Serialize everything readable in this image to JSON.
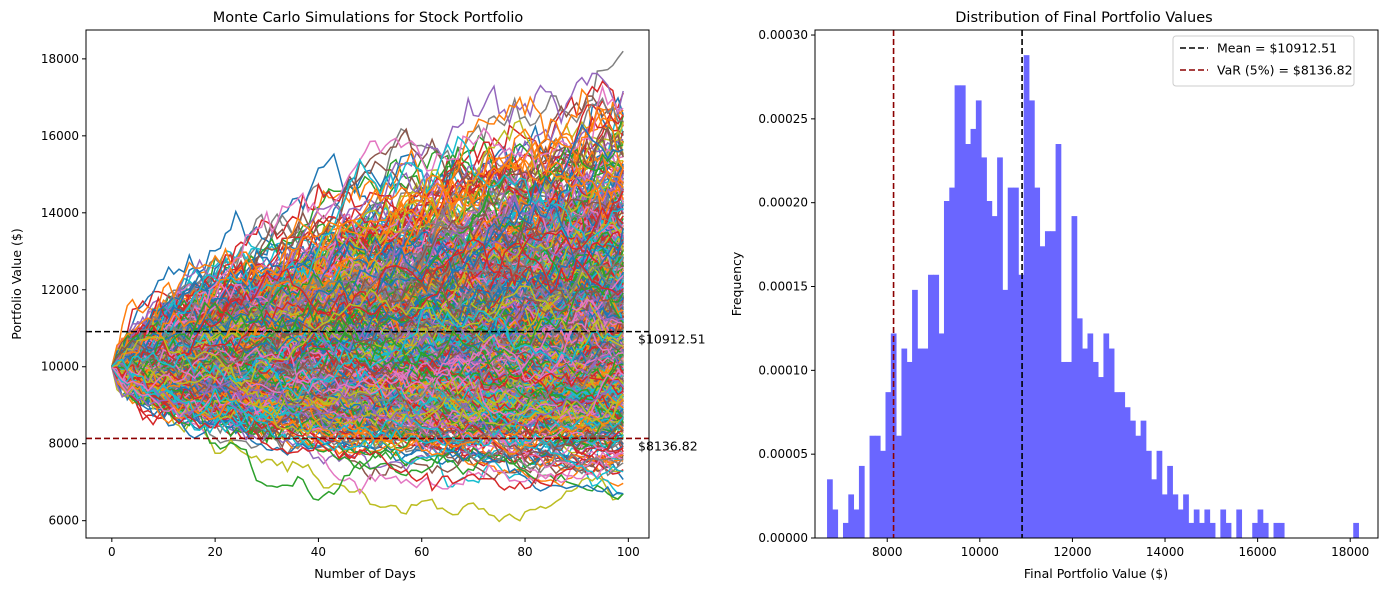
{
  "chart_data": [
    {
      "type": "line",
      "title": "Monte Carlo Simulations for Stock Portfolio",
      "xlabel": "Number of Days",
      "ylabel": "Portfolio Value ($)",
      "xlim": [
        -5,
        104
      ],
      "ylim": [
        5550,
        18750
      ],
      "xticks": [
        0,
        20,
        40,
        60,
        80,
        100
      ],
      "xtick_labels": [
        "0",
        "20",
        "40",
        "60",
        "80",
        "100"
      ],
      "yticks": [
        6000,
        8000,
        10000,
        12000,
        14000,
        16000,
        18000
      ],
      "ytick_labels": [
        "6000",
        "8000",
        "10000",
        "12000",
        "14000",
        "16000",
        "18000"
      ],
      "grid": false,
      "num_simulations": 1000,
      "num_days": 100,
      "initial_value": 10000,
      "final_value_range": [
        6700,
        18200
      ],
      "reference_lines": [
        {
          "name": "mean",
          "y": 10912.51,
          "label": "$10912.51",
          "color": "#000000",
          "style": "dashed"
        },
        {
          "name": "var",
          "y": 8136.82,
          "label": "$8136.82",
          "color": "#8b0000",
          "style": "dashed"
        }
      ],
      "series_colors": [
        "#1f77b4",
        "#ff7f0e",
        "#2ca02c",
        "#d62728",
        "#9467bd",
        "#8c564b",
        "#e377c2",
        "#7f7f7f",
        "#bcbd22",
        "#17becf"
      ]
    },
    {
      "type": "histogram",
      "title": "Distribution of Final Portfolio Values",
      "xlabel": "Final Portfolio Value ($)",
      "ylabel": "Frequency",
      "xlim": [
        6440,
        18600
      ],
      "ylim": [
        0,
        0.000303
      ],
      "xticks": [
        8000,
        10000,
        12000,
        14000,
        16000,
        18000
      ],
      "xtick_labels": [
        "8000",
        "10000",
        "12000",
        "14000",
        "16000",
        "18000"
      ],
      "yticks": [
        0,
        5e-05,
        0.0001,
        0.00015,
        0.0002,
        0.00025,
        0.0003
      ],
      "ytick_labels": [
        "0.00000",
        "0.00005",
        "0.00010",
        "0.00015",
        "0.00020",
        "0.00025",
        "0.00030"
      ],
      "bar_color": "#6a66ff",
      "bin_start": 6700,
      "bin_width": 114.8,
      "values": [
        3.5e-05,
        1.7e-05,
        0.0,
        9e-06,
        2.6e-05,
        1.7e-05,
        4.3e-05,
        0.0,
        6.1e-05,
        6.1e-05,
        5.2e-05,
        8.7e-05,
        0.000122,
        6.1e-05,
        0.000113,
        0.000105,
        0.000148,
        0.000113,
        0.000113,
        0.000157,
        0.000157,
        0.000122,
        0.000201,
        0.000209,
        0.00027,
        0.00027,
        0.000235,
        0.000244,
        0.000261,
        0.000227,
        0.000201,
        0.000192,
        0.000227,
        0.000148,
        0.000209,
        0.000209,
        0.000157,
        0.000288,
        0.000261,
        0.000209,
        0.000174,
        0.000183,
        0.000183,
        0.000235,
        0.000105,
        0.000105,
        0.000192,
        0.000131,
        0.000113,
        0.000122,
        0.000105,
        9.6e-05,
        0.000122,
        0.000113,
        8.7e-05,
        8.7e-05,
        7.8e-05,
        7e-05,
        6.1e-05,
        7e-05,
        5.2e-05,
        3.5e-05,
        5.2e-05,
        2.6e-05,
        4.3e-05,
        2.6e-05,
        1.7e-05,
        2.6e-05,
        9e-06,
        1.7e-05,
        9e-06,
        1.7e-05,
        9e-06,
        0.0,
        1.7e-05,
        9e-06,
        0.0,
        1.7e-05,
        0.0,
        0.0,
        9e-06,
        1.7e-05,
        9e-06,
        0.0,
        9e-06,
        9e-06,
        0.0,
        0.0,
        0.0,
        0.0,
        0.0,
        0.0,
        0.0,
        0.0,
        0.0,
        0.0,
        0.0,
        0.0,
        0.0,
        9e-06
      ],
      "reference_lines": [
        {
          "name": "mean",
          "x": 10912.51,
          "color": "#000000",
          "style": "dashed"
        },
        {
          "name": "var",
          "x": 8136.82,
          "color": "#8b0000",
          "style": "dashed"
        }
      ],
      "legend": {
        "position": "top-right",
        "entries": [
          {
            "label": "Mean = $10912.51",
            "color": "#000000",
            "style": "dashed"
          },
          {
            "label": "VaR (5%) = $8136.82",
            "color": "#8b0000",
            "style": "dashed"
          }
        ]
      }
    }
  ]
}
